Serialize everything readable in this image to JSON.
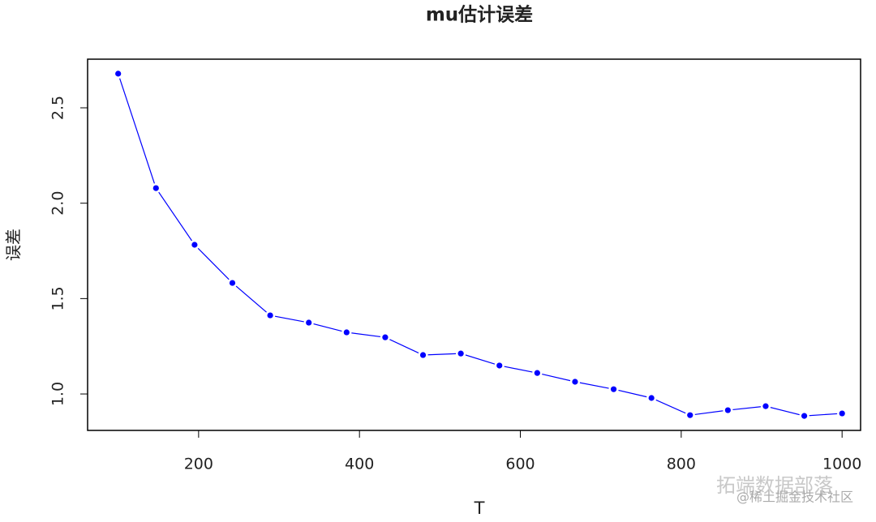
{
  "chart_data": {
    "type": "line",
    "title": "mu估计误差",
    "x_label": "T",
    "y_label": "误差",
    "x": [
      100,
      147,
      195,
      242,
      289,
      337,
      384,
      432,
      479,
      526,
      574,
      621,
      668,
      716,
      763,
      811,
      858,
      905,
      953,
      1000
    ],
    "series": [
      {
        "name": "mu",
        "color": "#0000ff",
        "values": [
          2.679,
          2.079,
          1.782,
          1.582,
          1.412,
          1.374,
          1.323,
          1.297,
          1.204,
          1.212,
          1.149,
          1.11,
          1.064,
          1.025,
          0.979,
          0.889,
          0.915,
          0.936,
          0.885,
          0.898
        ]
      }
    ],
    "xlim": [
      62,
      1023
    ],
    "ylim": [
      0.809,
      2.755
    ],
    "xticks": [
      200,
      400,
      600,
      800,
      1000
    ],
    "yticks": [
      {
        "value": 1.0,
        "label": "1.0"
      },
      1.5,
      {
        "value": 2.0,
        "label": "2.0"
      },
      2.5
    ],
    "grid": false
  },
  "watermark": {
    "text": "拓端数据部落",
    "source": "@稀土掘金技术社区"
  }
}
